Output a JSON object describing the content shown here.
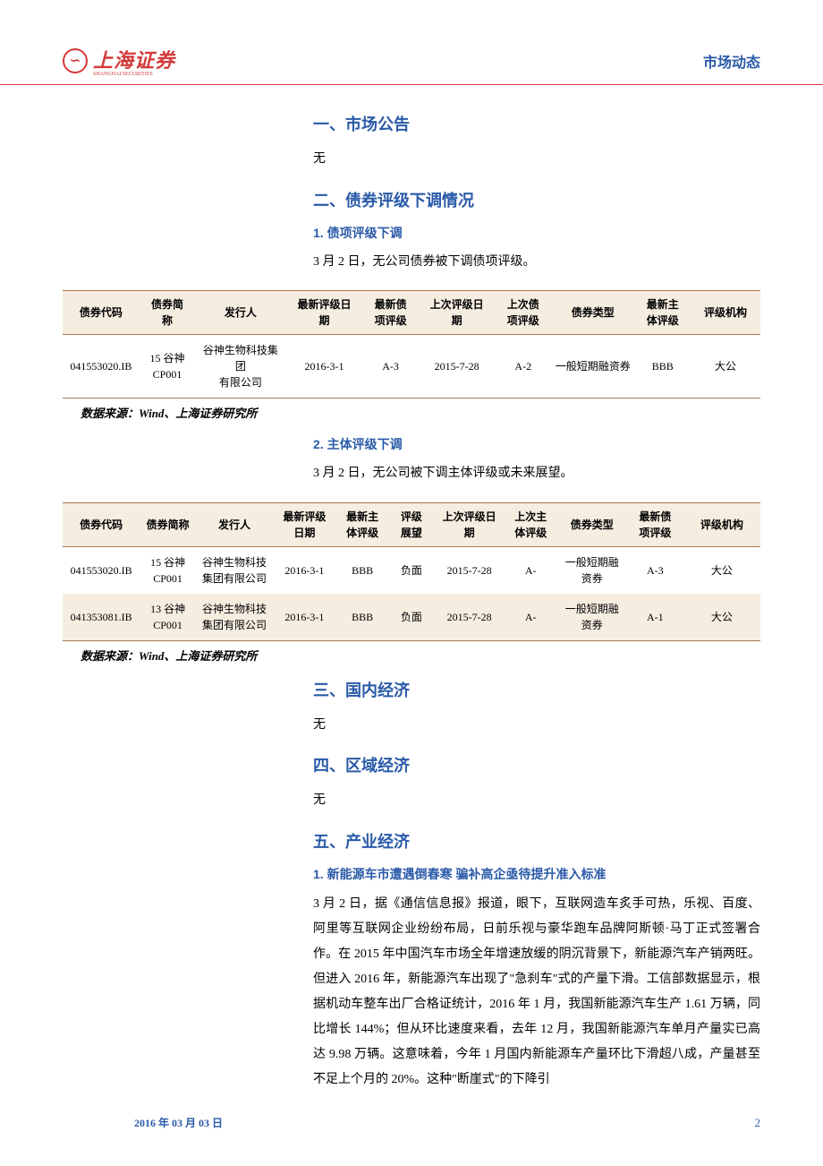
{
  "header": {
    "logo_symbol": "∽",
    "logo_text": "上海证券",
    "logo_sub": "SHANGHAI SECURITIES",
    "right": "市场动态"
  },
  "s1": {
    "title": "一、市场公告",
    "body": "无"
  },
  "s2": {
    "title": "二、债券评级下调情况",
    "sub1_title": "1. 债项评级下调",
    "sub1_para": "3 月 2 日，无公司债券被下调债项评级。",
    "sub2_title": "2. 主体评级下调",
    "sub2_para": "3 月 2 日，无公司被下调主体评级或未来展望。"
  },
  "s3": {
    "title": "三、国内经济",
    "body": "无"
  },
  "s4": {
    "title": "四、区域经济",
    "body": "无"
  },
  "s5": {
    "title": "五、产业经济",
    "sub1_title": "1. 新能源车市遭遇倒春寒 骗补高企亟待提升准入标准",
    "para": "3 月 2 日，据《通信信息报》报道，眼下，互联网造车炙手可热，乐视、百度、阿里等互联网企业纷纷布局，日前乐视与豪华跑车品牌阿斯顿·马丁正式签署合作。在 2015 年中国汽车市场全年增速放缓的阴沉背景下，新能源汽车产销两旺。但进入 2016 年，新能源汽车出现了\"急刹车\"式的产量下滑。工信部数据显示，根据机动车整车出厂合格证统计，2016 年 1 月，我国新能源汽车生产 1.61 万辆，同比增长 144%；但从环比速度来看，去年 12 月，我国新能源汽车单月产量实已高达 9.98 万辆。这意味着，今年 1 月国内新能源车产量环比下滑超八成，产量甚至不足上个月的 20%。这种\"断崖式\"的下降引"
  },
  "source": "数据来源：Wind、上海证券研究所",
  "table1": {
    "headers": [
      "债券代码",
      "债券简\n称",
      "发行人",
      "最新评级日\n期",
      "最新债\n项评级",
      "上次评级日\n期",
      "上次债\n项评级",
      "债券类型",
      "最新主\n体评级",
      "评级机构"
    ],
    "widths": [
      "11%",
      "8%",
      "13%",
      "11%",
      "8%",
      "11%",
      "8%",
      "12%",
      "8%",
      "10%"
    ],
    "rows": [
      [
        "041553020.IB",
        "15 谷神\nCP001",
        "谷神生物科技集团\n有限公司",
        "2016-3-1",
        "A-3",
        "2015-7-28",
        "A-2",
        "一般短期融资券",
        "BBB",
        "大公"
      ]
    ]
  },
  "table2": {
    "headers": [
      "债券代码",
      "债券简称",
      "发行人",
      "最新评级\n日期",
      "最新主\n体评级",
      "评级\n展望",
      "上次评级日\n期",
      "上次主\n体评级",
      "债券类型",
      "最新债\n项评级",
      "评级机构"
    ],
    "widths": [
      "11%",
      "8%",
      "11%",
      "9%",
      "7.5%",
      "6.5%",
      "10%",
      "7.5%",
      "10%",
      "8%",
      "11%"
    ],
    "rows": [
      [
        "041553020.IB",
        "15 谷神\nCP001",
        "谷神生物科技\n集团有限公司",
        "2016-3-1",
        "BBB",
        "负面",
        "2015-7-28",
        "A-",
        "一般短期融\n资券",
        "A-3",
        "大公"
      ],
      [
        "041353081.IB",
        "13 谷神\nCP001",
        "谷神生物科技\n集团有限公司",
        "2016-3-1",
        "BBB",
        "负面",
        "2015-7-28",
        "A-",
        "一般短期融\n资券",
        "A-1",
        "大公"
      ]
    ]
  },
  "footer": {
    "date": "2016 年 03 月 03 日",
    "page": "2"
  }
}
